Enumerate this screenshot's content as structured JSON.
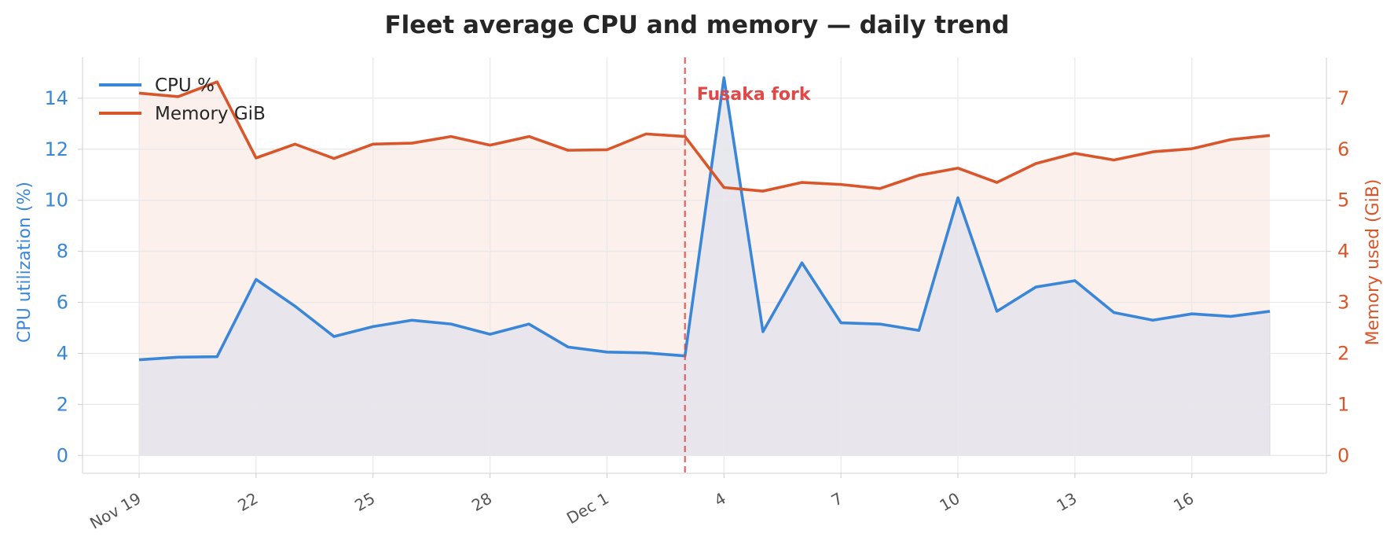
{
  "chart_data": {
    "type": "line",
    "title": "Fleet average CPU and memory — daily trend",
    "x": [
      "Nov 19",
      "Nov 20",
      "Nov 21",
      "Nov 22",
      "Nov 23",
      "Nov 24",
      "Nov 25",
      "Nov 26",
      "Nov 27",
      "Nov 28",
      "Nov 29",
      "Nov 30",
      "Dec 1",
      "Dec 2",
      "Dec 3",
      "Dec 4",
      "Dec 5",
      "Dec 6",
      "Dec 7",
      "Dec 8",
      "Dec 9",
      "Dec 10",
      "Dec 11",
      "Dec 12",
      "Dec 13",
      "Dec 14",
      "Dec 15",
      "Dec 16",
      "Dec 17",
      "Dec 18"
    ],
    "x_tick_labels": [
      {
        "day": "Nov 19",
        "label": "Nov 19"
      },
      {
        "day": "Nov 22",
        "label": "22"
      },
      {
        "day": "Nov 25",
        "label": "25"
      },
      {
        "day": "Nov 28",
        "label": "28"
      },
      {
        "day": "Dec 1",
        "label": "Dec 1"
      },
      {
        "day": "Dec 4",
        "label": "4"
      },
      {
        "day": "Dec 7",
        "label": "7"
      },
      {
        "day": "Dec 10",
        "label": "10"
      },
      {
        "day": "Dec 13",
        "label": "13"
      },
      {
        "day": "Dec 16",
        "label": "16"
      }
    ],
    "series": [
      {
        "name": "CPU %",
        "axis": "left",
        "color": "#3a86d8",
        "values": [
          3.75,
          3.85,
          3.87,
          6.9,
          5.85,
          4.66,
          5.05,
          5.3,
          5.15,
          4.75,
          5.15,
          4.25,
          4.05,
          4.02,
          3.9,
          14.8,
          4.85,
          7.55,
          5.2,
          5.15,
          4.9,
          10.1,
          5.65,
          6.6,
          6.85,
          5.6,
          5.3,
          5.55,
          5.45,
          5.65
        ]
      },
      {
        "name": "Memory GiB",
        "axis": "right",
        "color": "#d9562b",
        "values": [
          7.1,
          7.03,
          7.32,
          5.83,
          6.1,
          5.82,
          6.1,
          6.12,
          6.25,
          6.08,
          6.25,
          5.98,
          5.99,
          6.3,
          6.25,
          5.25,
          5.18,
          5.35,
          5.31,
          5.23,
          5.49,
          5.63,
          5.35,
          5.72,
          5.92,
          5.79,
          5.95,
          6.01,
          6.19,
          6.27
        ]
      }
    ],
    "ylabel": "CPU utilization (%)",
    "ylim": [
      -0.7,
      15.6
    ],
    "yticks": [
      "0",
      "2",
      "4",
      "6",
      "8",
      "10",
      "12",
      "14"
    ],
    "ylabel_right": "Memory used (GiB)",
    "ylim_right": [
      -0.35,
      7.8
    ],
    "yticks_right": [
      "0",
      "1",
      "2",
      "3",
      "4",
      "5",
      "6",
      "7"
    ],
    "grid": true,
    "legend_position": "top-left",
    "annotations": [
      {
        "type": "vline",
        "x": "Dec 3",
        "label": "Fusaka fork",
        "color": "#e04848"
      }
    ],
    "colors": {
      "cpu_axis": "#3a86d8",
      "memory_axis": "#d9562b",
      "cpu_fill": "#e4e4ec",
      "memory_fill": "#fbeeea",
      "grid": "#e8e8e8"
    }
  }
}
